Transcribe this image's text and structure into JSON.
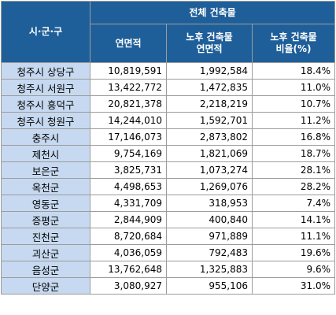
{
  "table": {
    "header": {
      "region": "시·군·구",
      "group": "전체 건축물",
      "col_area": "연면적",
      "col_old_area_line1": "노후 건축물",
      "col_old_area_line2": "연면적",
      "col_ratio_line1": "노후 건축물",
      "col_ratio_line2": "비율(%)"
    },
    "rows": [
      {
        "region": "청주시 상당구",
        "area": "10,819,591",
        "old_area": "1,992,584",
        "ratio": "18.4%"
      },
      {
        "region": "청주시 서원구",
        "area": "13,422,772",
        "old_area": "1,472,835",
        "ratio": "11.0%"
      },
      {
        "region": "청주시 흥덕구",
        "area": "20,821,378",
        "old_area": "2,218,219",
        "ratio": "10.7%"
      },
      {
        "region": "청주시 청원구",
        "area": "14,244,010",
        "old_area": "1,592,701",
        "ratio": "11.2%"
      },
      {
        "region": "충주시",
        "area": "17,146,073",
        "old_area": "2,873,802",
        "ratio": "16.8%"
      },
      {
        "region": "제천시",
        "area": "9,754,169",
        "old_area": "1,821,069",
        "ratio": "18.7%"
      },
      {
        "region": "보은군",
        "area": "3,825,731",
        "old_area": "1,073,274",
        "ratio": "28.1%"
      },
      {
        "region": "옥천군",
        "area": "4,498,653",
        "old_area": "1,269,076",
        "ratio": "28.2%"
      },
      {
        "region": "영동군",
        "area": "4,331,709",
        "old_area": "318,953",
        "ratio": "7.4%"
      },
      {
        "region": "증평군",
        "area": "2,844,909",
        "old_area": "400,840",
        "ratio": "14.1%"
      },
      {
        "region": "진천군",
        "area": "8,720,684",
        "old_area": "971,889",
        "ratio": "11.1%"
      },
      {
        "region": "괴산군",
        "area": "4,036,059",
        "old_area": "792,483",
        "ratio": "19.6%"
      },
      {
        "region": "음성군",
        "area": "13,762,648",
        "old_area": "1,325,883",
        "ratio": "9.6%"
      },
      {
        "region": "단양군",
        "area": "3,080,927",
        "old_area": "955,106",
        "ratio": "31.0%"
      }
    ]
  }
}
